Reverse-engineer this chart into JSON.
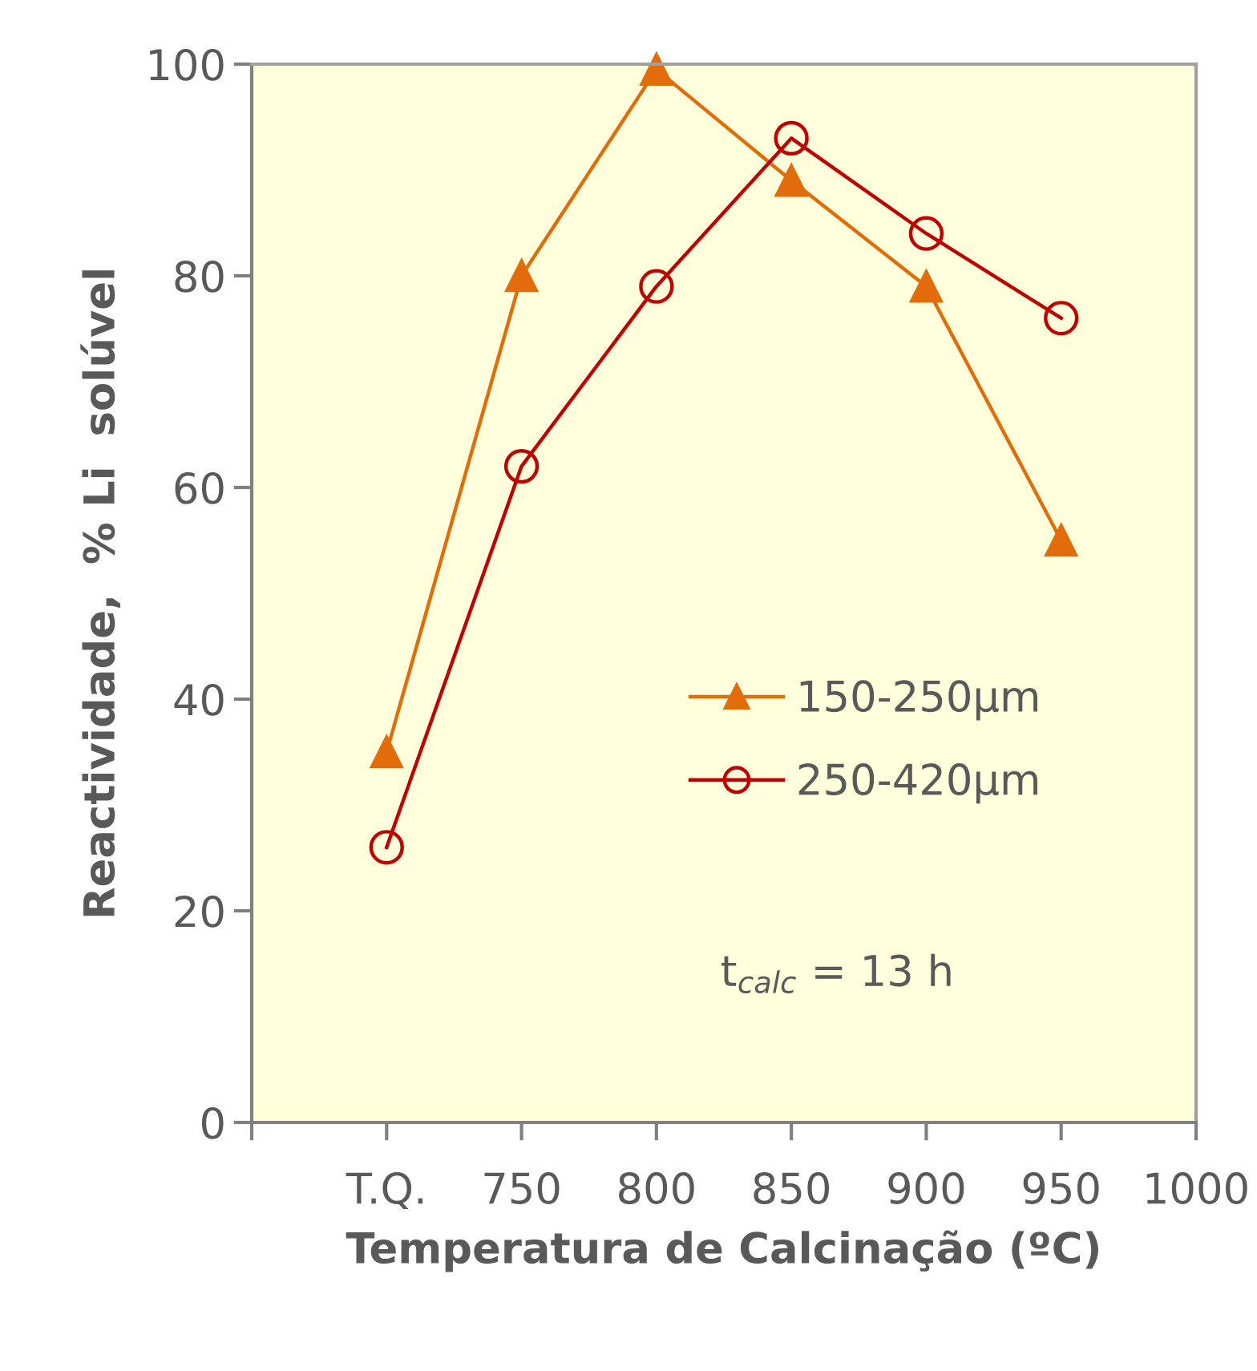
{
  "chart_data": {
    "type": "line",
    "xlabel": "Temperatura de Calcinação (ºC)",
    "ylabel": "Reactividade,  % Li  solúvel",
    "categories": [
      "T.Q.",
      "750",
      "800",
      "850",
      "900",
      "950",
      "1000"
    ],
    "series": [
      {
        "name": "150-250µm",
        "color": "#e36c0a",
        "marker": "triangle",
        "values": [
          35,
          80,
          99.5,
          89,
          79,
          55,
          null
        ]
      },
      {
        "name": "250-420µm",
        "color": "#c00000",
        "marker": "circle",
        "values": [
          26,
          62,
          79,
          93,
          84,
          76,
          null
        ]
      }
    ],
    "ylim": [
      0,
      100
    ],
    "yticks": [
      0,
      20,
      40,
      60,
      80,
      100
    ],
    "grid": false,
    "legend": "center",
    "annotations": [
      "t$_{calc}$ = 13 h"
    ]
  }
}
